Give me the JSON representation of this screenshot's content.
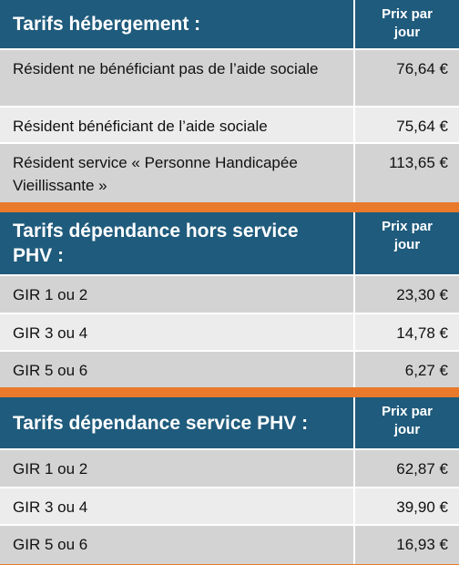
{
  "tables": [
    {
      "title": "Tarifs hébergement :",
      "price_header": "Prix par jour",
      "rows": [
        [
          "Résident ne bénéficiant pas de l’aide sociale",
          "76,64 €"
        ],
        [
          "Résident bénéficiant de l’aide sociale",
          "75,64 €"
        ],
        [
          "Résident service « Personne Handicapée Vieillissante »",
          "113,65 €"
        ]
      ]
    },
    {
      "title": "Tarifs dépendance hors service PHV :",
      "price_header": "Prix par jour",
      "rows": [
        [
          "GIR 1 ou 2",
          "23,30 €"
        ],
        [
          "GIR 3 ou 4",
          "14,78 €"
        ],
        [
          "GIR 5 ou 6",
          "6,27 €"
        ]
      ]
    },
    {
      "title": "Tarifs dépendance service PHV :",
      "price_header": "Prix par jour",
      "rows": [
        [
          "GIR 1 ou 2",
          "62,87 €"
        ],
        [
          "GIR 3 ou 4",
          "39,90 €"
        ],
        [
          "GIR 5 ou 6",
          "16,93 €"
        ]
      ]
    }
  ]
}
